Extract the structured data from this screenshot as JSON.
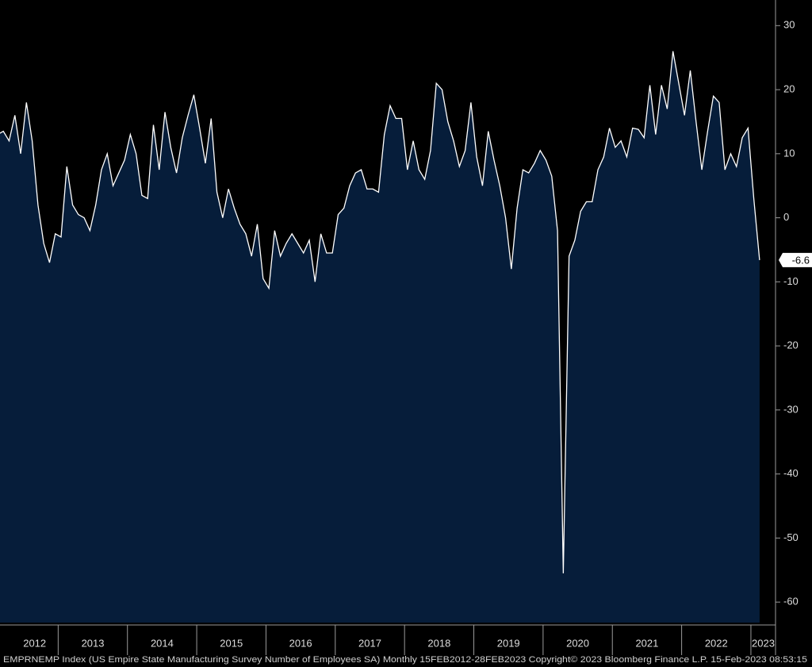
{
  "chart_data": {
    "type": "area",
    "footer": "EMPRNEMP Index (US Empire State Manufacturing Survey Number of Employees SA)  Monthly 15FEB2012-28FEB2023 Copyright© 2023 Bloomberg Finance L.P.  15-Feb-2023 08:53:15",
    "year_labels": [
      "2012",
      "2013",
      "2014",
      "2015",
      "2016",
      "2017",
      "2018",
      "2019",
      "2020",
      "2021",
      "2022",
      "2023"
    ],
    "values": [
      13,
      13.5,
      12,
      16,
      10,
      18,
      12,
      2,
      -4,
      -7,
      -2.5,
      -3,
      8,
      2,
      0.5,
      0,
      -2,
      2,
      7.5,
      10,
      5,
      7,
      9,
      13,
      10,
      3.5,
      3,
      14.5,
      7.5,
      16.5,
      11,
      7,
      12.5,
      16,
      19.2,
      14,
      8.5,
      15.5,
      4,
      0,
      4.5,
      1.5,
      -1,
      -2.5,
      -6,
      -1,
      -9.5,
      -11,
      -2,
      -6,
      -4,
      -2.5,
      -4,
      -5.5,
      -3.5,
      -10,
      -2.5,
      -5.5,
      -5.5,
      0.5,
      1.5,
      5,
      7,
      7.5,
      4.5,
      4.5,
      4,
      13,
      17.5,
      15.5,
      15.5,
      7.5,
      12,
      7.5,
      6,
      10.5,
      21,
      20,
      15,
      12,
      8,
      10.5,
      18,
      9.5,
      5,
      13.5,
      9,
      5,
      0,
      -8,
      1.5,
      7.5,
      7,
      8.5,
      10.5,
      9,
      6.5,
      -2,
      -55.5,
      -6,
      -3.5,
      1,
      2.5,
      2.5,
      7.5,
      9.5,
      14,
      11,
      12,
      9.5,
      14,
      13.8,
      12.5,
      20.7,
      13,
      20.7,
      17,
      26,
      21,
      16,
      23,
      15,
      7.5,
      13.5,
      19,
      18,
      7.5,
      10,
      8,
      12.5,
      14,
      3,
      -6.6
    ],
    "line_color": "#ffffff",
    "fill_color": "#061d3a",
    "ylim": [
      -63.2,
      34
    ],
    "yticks": [
      30,
      20,
      10,
      0,
      -10,
      -20,
      -30,
      -40,
      -50,
      -60
    ]
  }
}
